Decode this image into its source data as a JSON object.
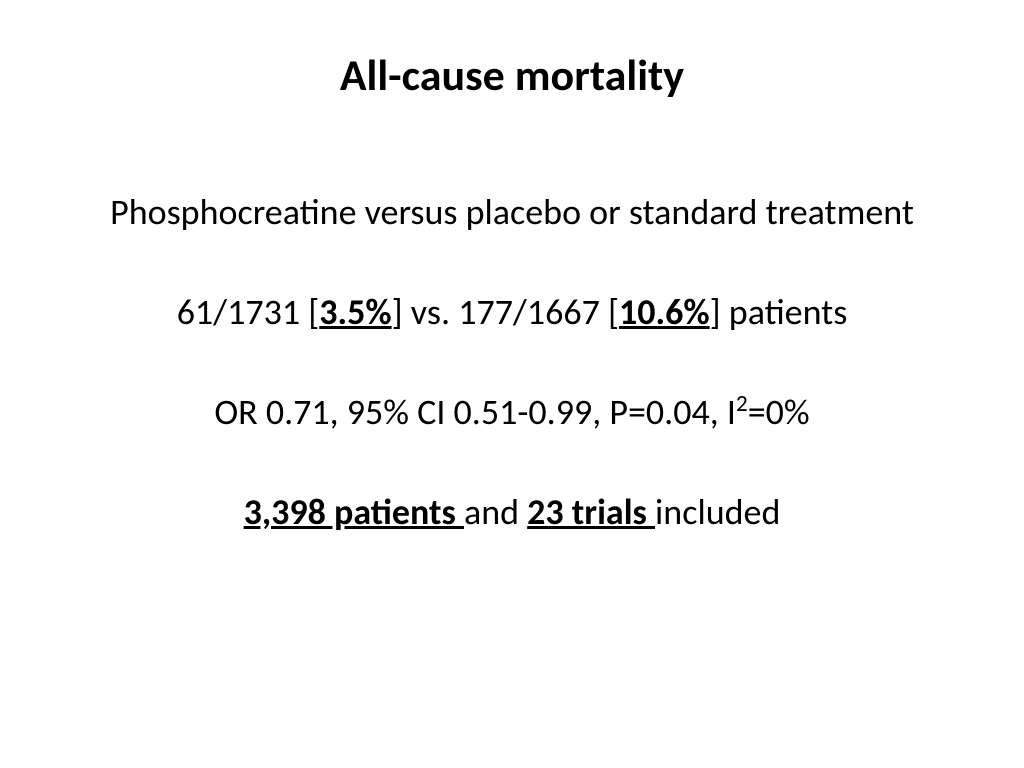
{
  "title": "All-cause mortality",
  "subtitle": "Phosphocreatine versus placebo or standard treatment",
  "comparison": {
    "pre1": "61/1731 [",
    "pct1": "3.5%",
    "mid": "] vs. 177/1667 [",
    "pct2": "10.6%",
    "post": "] patients"
  },
  "stats": {
    "pre": "OR 0.71, 95% CI 0.51-0.99, P=0.04, I",
    "sup": "2",
    "post": "=0%"
  },
  "summary": {
    "patients": "3,398 patients ",
    "and": "and ",
    "trials": "23 trials ",
    "included": "included"
  },
  "style": {
    "background": "#ffffff",
    "text_color": "#000000",
    "title_fontsize": 44,
    "body_fontsize": 36,
    "font_family": "Calibri"
  }
}
